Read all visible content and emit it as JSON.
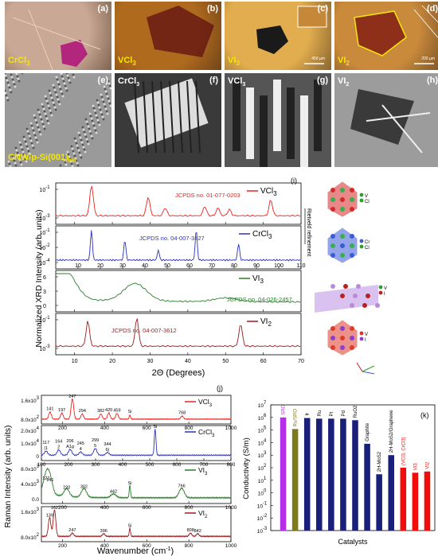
{
  "micrographs": [
    {
      "id": "a",
      "material": "CrCl",
      "sub": "3",
      "bg": "#c9a995",
      "accent": "#b0177a"
    },
    {
      "id": "b",
      "material": "VCl",
      "sub": "3",
      "bg": "#b06a1e",
      "accent": "#5b0a10"
    },
    {
      "id": "c",
      "material": "VI",
      "sub": "3",
      "bg": "#e2ad4e",
      "accent": "#1a1a1a",
      "scale": "450 µm"
    },
    {
      "id": "d",
      "material": "VI",
      "sub": "2",
      "bg": "#c98a3c",
      "accent": "#8e2f1a",
      "scale": "200 µm"
    }
  ],
  "sem": [
    {
      "id": "e",
      "label": "CNW/p-Si(001)",
      "sub": "hkl",
      "bg": "#9a9a9a"
    },
    {
      "id": "f",
      "label": "CrCl",
      "sub": "3",
      "bg": "#3a3a3a"
    },
    {
      "id": "g",
      "label": "VCl",
      "sub": "3",
      "bg": "#555555"
    },
    {
      "id": "h",
      "label": "VI",
      "sub": "2",
      "bg": "#9c9c9c"
    }
  ],
  "xrd": {
    "panel": "(i)",
    "ylabel": "Normalized XRD Intensity (arb. units)",
    "xlabel": "2Θ (Degrees)",
    "side_label": "Rietveld refinement",
    "traces": [
      {
        "name": "VCl",
        "sub": "3",
        "jcpds": "JCPDS no. 01-077-0203",
        "color": "#e8231f",
        "ticks": [
          "10",
          "20",
          "30",
          "40",
          "50",
          "60",
          "70"
        ],
        "yticks": [
          "10",
          "10"
        ],
        "yexp": [
          "-1",
          "-3"
        ],
        "peaks": [
          [
            14.5,
            1.0
          ],
          [
            29.5,
            0.6
          ],
          [
            34,
            0.25
          ],
          [
            44.5,
            0.3
          ],
          [
            48,
            0.25
          ],
          [
            51,
            0.2
          ],
          [
            62,
            0.5
          ]
        ]
      },
      {
        "name": "CrCl",
        "sub": "3",
        "jcpds": "JCPDS no. 04-007-3427",
        "color": "#2a32b8",
        "ticks": [
          "10",
          "20",
          "30",
          "40",
          "50",
          "60",
          "70",
          "80",
          "90",
          "100",
          "110"
        ],
        "yticks": [
          "10",
          "10",
          "10"
        ],
        "yexp": [
          "-1",
          "-2",
          "-4"
        ],
        "peaks": [
          [
            16,
            0.9
          ],
          [
            31,
            0.6
          ],
          [
            46,
            0.3
          ],
          [
            63,
            0.9
          ],
          [
            82,
            0.5
          ]
        ]
      },
      {
        "name": "VI",
        "sub": "3",
        "jcpds": "JCPDS no. 04-026-2457",
        "color": "#2b7d2b",
        "ticks": [
          "10",
          "20",
          "30",
          "40",
          "50",
          "60",
          "70"
        ],
        "yticks": [
          "6",
          "3",
          "0"
        ],
        "yexp": [
          "",
          "",
          ""
        ],
        "peaks": [
          [
            7,
            1.0
          ],
          [
            26,
            0.55
          ],
          [
            50,
            0.12
          ]
        ]
      },
      {
        "name": "VI",
        "sub": "2",
        "jcpds": "JCPDS no. 04-007-3612",
        "color": "#9b1b1b",
        "ticks": [
          "10",
          "20",
          "30",
          "40",
          "50",
          "60",
          "70"
        ],
        "yticks": [
          "10",
          "10"
        ],
        "yexp": [
          "-1",
          "-3"
        ],
        "peaks": [
          [
            13.5,
            0.8
          ],
          [
            26.5,
            0.9
          ],
          [
            54,
            0.7
          ]
        ]
      }
    ],
    "legend_atoms": [
      {
        "sym": "V",
        "color": "#2ca02c"
      },
      {
        "sym": "Cl",
        "color": "#2ca02c"
      },
      {
        "sym": "Cr",
        "color": "#3b5bd8"
      },
      {
        "sym": "Cl",
        "color": "#2ca02c"
      },
      {
        "sym": "V",
        "color": "#2ca02c"
      },
      {
        "sym": "I",
        "color": "#c02020"
      },
      {
        "sym": "V",
        "color": "#e03020"
      },
      {
        "sym": "I",
        "color": "#8a3fd1"
      }
    ]
  },
  "raman": {
    "panel": "(j)",
    "ylabel": "Raman Intensity (arb. units)",
    "xlabel": "Wavenumber (cm",
    "xlabel_sup": "-1",
    "xlabel_end": ")",
    "traces": [
      {
        "name": "VCl",
        "sub": "3",
        "color": "#e8231f",
        "yticks": [
          "1.6x10",
          "8.0x10"
        ],
        "yexp": [
          "3",
          "2"
        ],
        "xticks": [
          "200",
          "400",
          "600",
          "800",
          "1000"
        ],
        "peaks": [
          [
            141,
            0.35
          ],
          [
            197,
            0.3
          ],
          [
            247,
            1.0
          ],
          [
            294,
            0.25
          ],
          [
            382,
            0.25
          ],
          [
            420,
            0.3
          ],
          [
            459,
            0.28
          ],
          [
            520,
            0.2
          ],
          [
            768,
            0.15
          ]
        ],
        "labels": [
          "141",
          "197",
          "247",
          "294",
          "382",
          "420",
          "459",
          "Si",
          "768"
        ],
        "xmin": 100,
        "xmax": 1000
      },
      {
        "name": "CrCl",
        "sub": "3",
        "color": "#2a32b8",
        "yticks": [
          "2.0x10",
          "1.0x10",
          "0"
        ],
        "yexp": [
          "4",
          "4",
          ""
        ],
        "xticks": [
          "100",
          "200",
          "300",
          "400",
          "500",
          "600",
          "700",
          "800"
        ],
        "peaks": [
          [
            117,
            0.15
          ],
          [
            164,
            0.2
          ],
          [
            206,
            0.22
          ],
          [
            245,
            0.12
          ],
          [
            299,
            0.25
          ],
          [
            344,
            0.1
          ],
          [
            520,
            1.0
          ]
        ],
        "labels": [
          "117\n(1",
          "164\n2",
          "206\nA1g",
          "245\n4",
          "299\n5",
          "344\n6)",
          "Si"
        ],
        "xmin": 100,
        "xmax": 800
      },
      {
        "name": "VI",
        "sub": "3",
        "color": "#2b7d2b",
        "yticks": [
          "8.0x10",
          "4.0x10",
          "0.0"
        ],
        "yexp": [
          "3",
          "3",
          ""
        ],
        "xticks": [
          "200",
          "400",
          "600",
          "800",
          "1000"
        ],
        "peaks": [
          [
            122,
            0.55
          ],
          [
            141,
            0.5
          ],
          [
            220,
            0.25
          ],
          [
            302,
            0.28
          ],
          [
            442,
            0.12
          ],
          [
            520,
            0.4
          ],
          [
            766,
            0.3
          ]
        ],
        "labels": [
          "122",
          "141",
          "220",
          "302",
          "442",
          "Si",
          "766"
        ],
        "xmin": 100,
        "xmax": 1000
      },
      {
        "name": "VI",
        "sub": "2",
        "color": "#9b1b1b",
        "yticks": [
          "1.6x10",
          "8.0x10"
        ],
        "yexp": [
          "3",
          "2"
        ],
        "xticks": [
          "200",
          "400",
          "600",
          "800",
          "1000"
        ],
        "peaks": [
          [
            139,
            0.7
          ],
          [
            162,
            1.0
          ],
          [
            247,
            0.12
          ],
          [
            396,
            0.1
          ],
          [
            520,
            0.3
          ],
          [
            808,
            0.12
          ],
          [
            842,
            0.1
          ]
        ],
        "labels": [
          "139",
          "162",
          "247",
          "396",
          "Si",
          "808",
          "842"
        ],
        "xmin": 100,
        "xmax": 1000
      }
    ]
  },
  "chart_data": {
    "type": "bar",
    "panel": "(k)",
    "ylabel": "Conductivity (S/m)",
    "xlabel": "Catalysts",
    "log_scale": true,
    "ylim": [
      0.001,
      10000000
    ],
    "yticks": [
      "10",
      "10",
      "10",
      "10",
      "10",
      "10",
      "10",
      "10",
      "10",
      "10",
      "10"
    ],
    "yexp": [
      "-3",
      "-2",
      "-1",
      "0",
      "1",
      "2",
      "3",
      "4",
      "5",
      "6",
      "7"
    ],
    "categories": [
      "SRO",
      "Ru/SRO",
      "Ir",
      "Ru",
      "Pt",
      "Pd",
      "RuO2",
      "Graphite",
      "2H-MoS2",
      "2H-MoS2/Graphene",
      "(VCl3, CrCl3)",
      "VI3",
      "VI2"
    ],
    "values": [
      1000000,
      120000,
      900000,
      800000,
      800000,
      800000,
      600000,
      8000,
      30,
      1000,
      100,
      40,
      50
    ],
    "colors": [
      "#b52ee8",
      "#7f7a1c",
      "#1a1f7a",
      "#1a1f7a",
      "#1a1f7a",
      "#1a1f7a",
      "#1a1f7a",
      "#1a1f7a",
      "#1a1f7a",
      "#1a1f7a",
      "#f20d0d",
      "#f20d0d",
      "#f20d0d"
    ],
    "label_colors": [
      "#b52ee8",
      "#7f7a1c",
      "#000000",
      "#000000",
      "#000000",
      "#000000",
      "#000000",
      "#000000",
      "#000000",
      "#000000",
      "#f20d0d",
      "#f20d0d",
      "#f20d0d"
    ]
  }
}
